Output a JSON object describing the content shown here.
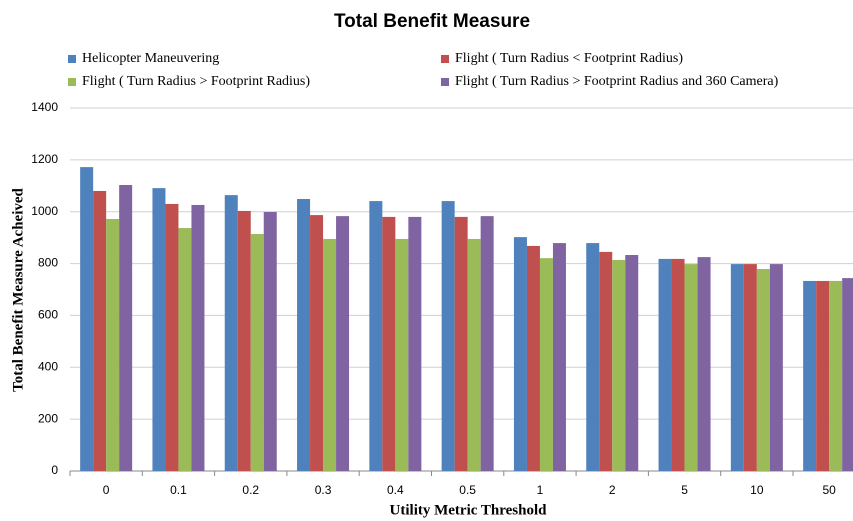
{
  "chart_data": {
    "type": "bar",
    "title": "Total Benefit Measure",
    "x_label": "Utility Metric Threshold",
    "y_label": "Total Benefit Measure Acheived",
    "categories": [
      "0",
      "0.1",
      "0.2",
      "0.3",
      "0.4",
      "0.5",
      "1",
      "2",
      "5",
      "10",
      "50"
    ],
    "series": [
      {
        "name": "Helicopter Maneuvering",
        "color": "#4f81bd",
        "values": [
          1172,
          1091,
          1064,
          1049,
          1041,
          1041,
          902,
          879,
          818,
          798,
          733
        ]
      },
      {
        "name": "Flight ( Turn Radius < Footprint Radius)",
        "color": "#c0504d",
        "values": [
          1080,
          1030,
          1003,
          987,
          980,
          980,
          868,
          845,
          818,
          798,
          733
        ]
      },
      {
        "name": "Flight ( Turn Radius > Footprint Radius)",
        "color": "#9bbb59",
        "values": [
          972,
          937,
          914,
          895,
          895,
          895,
          821,
          814,
          798,
          779,
          733
        ]
      },
      {
        "name": "Flight ( Turn Radius > Footprint Radius and 360 Camera)",
        "color": "#8064a2",
        "values": [
          1103,
          1026,
          999,
          983,
          980,
          983,
          879,
          833,
          825,
          798,
          744
        ]
      }
    ],
    "ylim": [
      0,
      1400
    ],
    "yticks": [
      0,
      200,
      400,
      600,
      800,
      1000,
      1200,
      1400
    ],
    "grid": true
  }
}
